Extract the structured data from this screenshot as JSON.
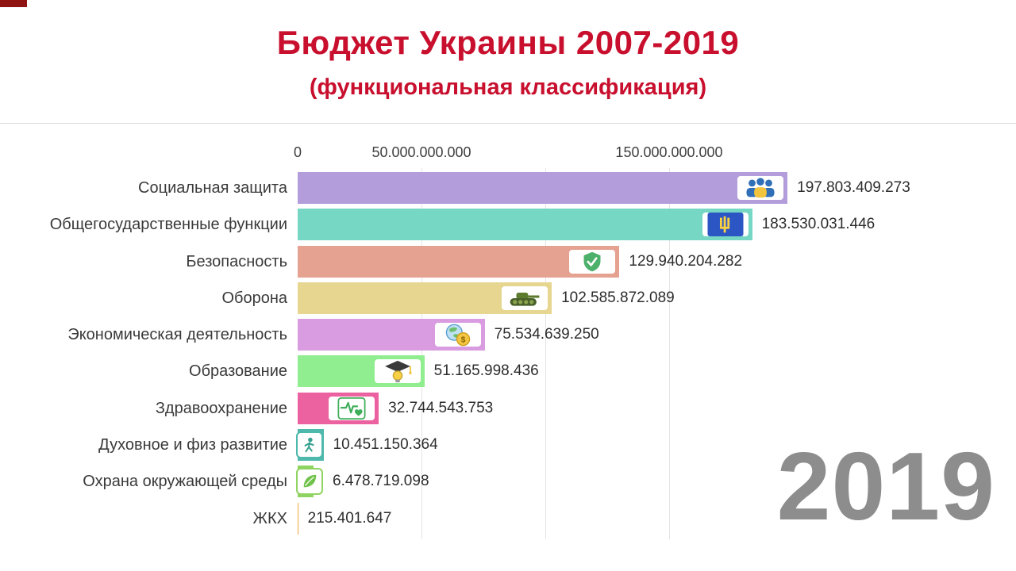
{
  "colors": {
    "title_red": "#c8102e",
    "year_gray": "#8d8d8d",
    "progress_red": "#8f1313"
  },
  "chart_data": {
    "type": "bar",
    "orientation": "horizontal",
    "title": "Бюджет Украины 2007-2019",
    "subtitle": "(функциональная классификация)",
    "year": "2019",
    "axis": {
      "position": "top",
      "xlim": [
        0,
        200000000000
      ],
      "grid": true,
      "ticks": [
        {
          "value": 0,
          "label": "0"
        },
        {
          "value": 50000000000,
          "label": "50.000.000.000"
        },
        {
          "value": 100000000000,
          "label": ""
        },
        {
          "value": 150000000000,
          "label": "150.000.000.000"
        }
      ]
    },
    "bars": [
      {
        "category": "Социальная защита",
        "value": 197803409273,
        "value_label": "197.803.409.273",
        "color": "#b39ddb",
        "icon": "people-icon"
      },
      {
        "category": "Общегосударственные функции",
        "value": 183530031446,
        "value_label": "183.530.031.446",
        "color": "#76d7c4",
        "icon": "ukraine-flag-icon"
      },
      {
        "category": "Безопасность",
        "value": 129940204282,
        "value_label": "129.940.204.282",
        "color": "#e5a291",
        "icon": "shield-check-icon"
      },
      {
        "category": "Оборона",
        "value": 102585872089,
        "value_label": "102.585.872.089",
        "color": "#e6d68f",
        "icon": "tank-icon"
      },
      {
        "category": "Экономическая деятельность",
        "value": 75534639250,
        "value_label": "75.534.639.250",
        "color": "#d99ce0",
        "icon": "globe-money-icon"
      },
      {
        "category": "Образование",
        "value": 51165998436,
        "value_label": "51.165.998.436",
        "color": "#90ee90",
        "icon": "education-icon"
      },
      {
        "category": "Здравоохранение",
        "value": 32744543753,
        "value_label": "32.744.543.753",
        "color": "#ec619f",
        "icon": "health-icon"
      },
      {
        "category": "Духовное и физ развитие",
        "value": 10451150364,
        "value_label": "10.451.150.364",
        "color": "#4db8ab",
        "icon": "culture-icon"
      },
      {
        "category": "Охрана окружающей среды",
        "value": 6478719098,
        "value_label": "6.478.719.098",
        "color": "#8fd460",
        "icon": "environment-icon"
      },
      {
        "category": "ЖКХ",
        "value": 215401647,
        "value_label": "215.401.647",
        "color": "#f0a541",
        "icon": null
      }
    ]
  }
}
